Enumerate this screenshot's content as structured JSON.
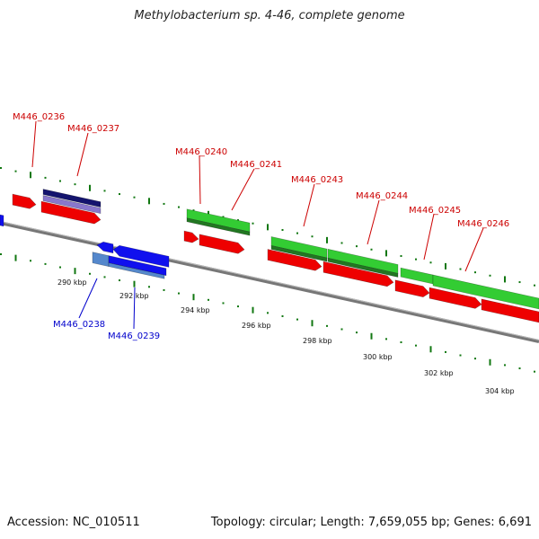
{
  "title": "Methylobacterium sp. 4-46, complete genome",
  "accession": "Accession: NC_010511",
  "summary": "Topology: circular; Length: 7,659,055 bp; Genes: 6,691",
  "colors": {
    "forward_cds": "#ee0000",
    "reverse_cds": "#1010ee",
    "rna": "#33cc33",
    "dark_blue": "#14146e",
    "purple": "#8877cc",
    "steel_blue": "#5588cc",
    "backbone": "#888888",
    "tick": "#117711",
    "forward_label": "#cc0000",
    "reverse_label": "#0000cc"
  },
  "scale_labels": [
    "290 kbp",
    "292 kbp",
    "294 kbp",
    "296 kbp",
    "298 kbp",
    "300 kbp",
    "302 kbp",
    "304 kbp"
  ],
  "gene_labels": [
    {
      "text": "M446_0236",
      "strand": "forward"
    },
    {
      "text": "M446_0237",
      "strand": "forward"
    },
    {
      "text": "M446_0240",
      "strand": "forward"
    },
    {
      "text": "M446_0241",
      "strand": "forward"
    },
    {
      "text": "M446_0243",
      "strand": "forward"
    },
    {
      "text": "M446_0244",
      "strand": "forward"
    },
    {
      "text": "M446_0245",
      "strand": "forward"
    },
    {
      "text": "M446_0246",
      "strand": "forward"
    },
    {
      "text": "M446_0238",
      "strand": "reverse"
    },
    {
      "text": "M446_0239",
      "strand": "reverse"
    }
  ]
}
